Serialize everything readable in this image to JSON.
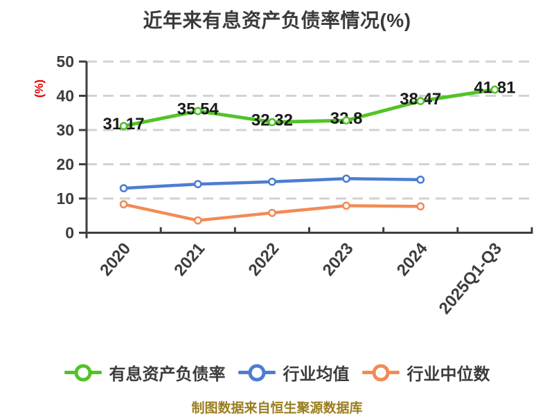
{
  "title": "近年来有息资产负债率情况(%)",
  "y_axis_unit_label": "(%)",
  "watermark": "制图数据来自恒生聚源数据库",
  "colors": {
    "title_text": "#3a3a3a",
    "axis_and_ticks": "#3d3d3d",
    "gridline": "#d2d2d2",
    "data_label_text": "#1a1a1a",
    "unit_label_red": "#e60000",
    "legend_text": "#3c3c3c",
    "watermark_gold": "#9a7d1f",
    "background": "#ffffff"
  },
  "chart_data": {
    "type": "line",
    "title": "近年来有息资产负债率情况(%)",
    "categories": [
      "2020",
      "2021",
      "2022",
      "2023",
      "2024",
      "2025Q1-Q3"
    ],
    "series": [
      {
        "key": "interest-bearing-debt-ratio",
        "name": "有息资产负债率",
        "color": "#52c327",
        "values": [
          31.17,
          35.54,
          32.32,
          32.8,
          38.47,
          41.81
        ],
        "point_labels": [
          "31.17",
          "35.54",
          "32.32",
          "32.8",
          "38.47",
          "41.81"
        ]
      },
      {
        "key": "industry-average",
        "name": "行业均值",
        "color": "#4d7dd2",
        "values": [
          13.0,
          14.2,
          14.9,
          15.8,
          15.5
        ],
        "point_labels": []
      },
      {
        "key": "industry-median",
        "name": "行业中位数",
        "color": "#f28b54",
        "values": [
          8.3,
          3.6,
          5.8,
          7.9,
          7.7
        ],
        "point_labels": []
      }
    ],
    "ylabel": "(%)",
    "ylim": [
      0,
      50
    ],
    "yticks": [
      0,
      10,
      20,
      30,
      40,
      50
    ],
    "grid": "horizontal-dashed",
    "legend_position": "bottom",
    "x_tick_rotation_deg": -50
  }
}
